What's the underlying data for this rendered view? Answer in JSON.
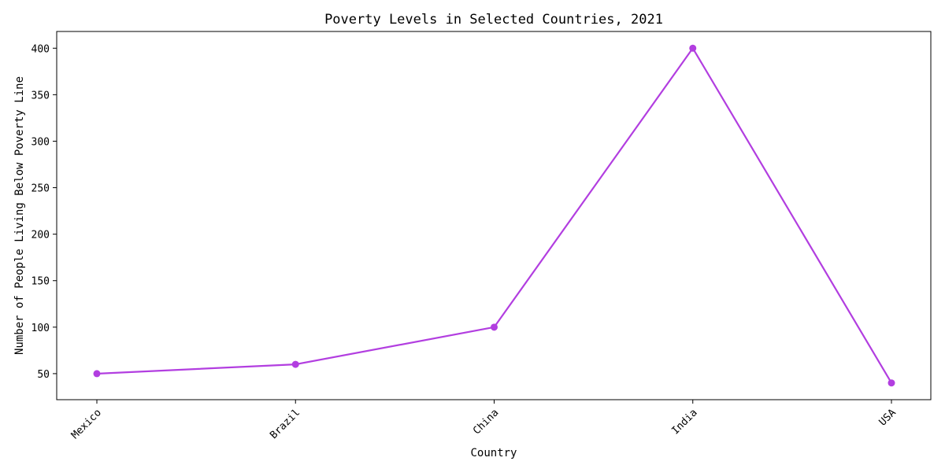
{
  "chart_data": {
    "type": "line",
    "title": "Poverty Levels in Selected Countries, 2021",
    "xlabel": "Country",
    "ylabel": "Number of People Living Below Poverty Line",
    "categories": [
      "Mexico",
      "Brazil",
      "China",
      "India",
      "USA"
    ],
    "series": [
      {
        "values": [
          50,
          60,
          100,
          400,
          40
        ],
        "color": "#b23ee0"
      }
    ],
    "yticks": [
      50,
      100,
      150,
      200,
      250,
      300,
      350,
      400
    ],
    "ylim": [
      22,
      418
    ],
    "grid": false,
    "marker": "circle"
  }
}
